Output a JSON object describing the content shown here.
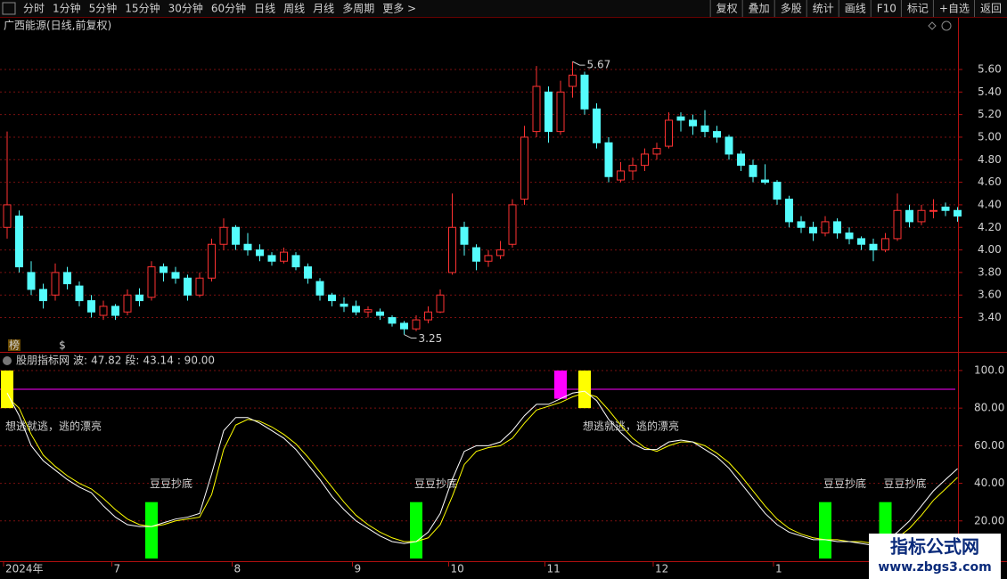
{
  "toolbar": {
    "left": [
      "分时",
      "1分钟",
      "5分钟",
      "15分钟",
      "30分钟",
      "60分钟",
      "日线",
      "周线",
      "月线",
      "多周期",
      "更多 >"
    ],
    "right": [
      "复权",
      "叠加",
      "多股",
      "统计",
      "画线",
      "F10",
      "标记",
      "+自选",
      "返回"
    ]
  },
  "markers": [
    "榜",
    "$"
  ],
  "watermark": {
    "title": "指标公式网",
    "url": "www.zbgs3.com"
  },
  "chart_data": [
    {
      "type": "candlestick",
      "title": "广西能源(日线,前复权)",
      "categories": [
        "2024年",
        null,
        null,
        null,
        null,
        null,
        null,
        null,
        null,
        "7",
        null,
        null,
        null,
        null,
        null,
        null,
        null,
        null,
        null,
        "8",
        null,
        null,
        null,
        null,
        null,
        null,
        null,
        null,
        null,
        "9",
        null,
        null,
        null,
        null,
        null,
        null,
        null,
        "10",
        null,
        null,
        null,
        null,
        null,
        null,
        null,
        "11",
        null,
        null,
        null,
        null,
        null,
        null,
        null,
        null,
        "12",
        null,
        null,
        null,
        null,
        null,
        null,
        null,
        null,
        null,
        "1",
        null,
        null,
        null,
        null,
        null,
        null,
        null,
        null,
        null,
        null,
        null,
        null,
        null,
        null,
        null
      ],
      "candles": [
        [
          4.2,
          5.05,
          4.1,
          4.4
        ],
        [
          4.3,
          4.35,
          3.8,
          3.85
        ],
        [
          3.8,
          3.9,
          3.6,
          3.65
        ],
        [
          3.65,
          3.7,
          3.48,
          3.55
        ],
        [
          3.6,
          3.88,
          3.55,
          3.8
        ],
        [
          3.8,
          3.85,
          3.65,
          3.7
        ],
        [
          3.68,
          3.72,
          3.5,
          3.55
        ],
        [
          3.55,
          3.6,
          3.4,
          3.45
        ],
        [
          3.42,
          3.55,
          3.38,
          3.5
        ],
        [
          3.5,
          3.52,
          3.38,
          3.42
        ],
        [
          3.45,
          3.65,
          3.42,
          3.6
        ],
        [
          3.6,
          3.66,
          3.5,
          3.55
        ],
        [
          3.58,
          3.9,
          3.55,
          3.85
        ],
        [
          3.85,
          3.88,
          3.72,
          3.8
        ],
        [
          3.8,
          3.85,
          3.7,
          3.75
        ],
        [
          3.75,
          3.78,
          3.55,
          3.6
        ],
        [
          3.6,
          3.8,
          3.58,
          3.75
        ],
        [
          3.75,
          4.1,
          3.72,
          4.05
        ],
        [
          4.05,
          4.28,
          4.0,
          4.2
        ],
        [
          4.2,
          4.22,
          4.0,
          4.05
        ],
        [
          4.05,
          4.15,
          3.95,
          4.0
        ],
        [
          4.0,
          4.05,
          3.9,
          3.95
        ],
        [
          3.95,
          3.98,
          3.86,
          3.9
        ],
        [
          3.9,
          4.02,
          3.88,
          3.98
        ],
        [
          3.95,
          3.98,
          3.82,
          3.85
        ],
        [
          3.85,
          3.88,
          3.7,
          3.75
        ],
        [
          3.72,
          3.75,
          3.55,
          3.6
        ],
        [
          3.6,
          3.62,
          3.5,
          3.55
        ],
        [
          3.52,
          3.58,
          3.45,
          3.5
        ],
        [
          3.5,
          3.55,
          3.42,
          3.45
        ],
        [
          3.45,
          3.5,
          3.4,
          3.47
        ],
        [
          3.45,
          3.48,
          3.38,
          3.42
        ],
        [
          3.4,
          3.42,
          3.32,
          3.35
        ],
        [
          3.35,
          3.37,
          3.25,
          3.3
        ],
        [
          3.3,
          3.42,
          3.28,
          3.38
        ],
        [
          3.38,
          3.5,
          3.35,
          3.45
        ],
        [
          3.45,
          3.65,
          3.44,
          3.6
        ],
        [
          3.8,
          4.5,
          3.78,
          4.2
        ],
        [
          4.2,
          4.25,
          3.95,
          4.05
        ],
        [
          4.02,
          4.05,
          3.82,
          3.9
        ],
        [
          3.9,
          4.0,
          3.85,
          3.95
        ],
        [
          3.95,
          4.08,
          3.92,
          4.0
        ],
        [
          4.05,
          4.45,
          4.02,
          4.4
        ],
        [
          4.45,
          5.1,
          4.4,
          5.0
        ],
        [
          5.05,
          5.63,
          5.0,
          5.45
        ],
        [
          5.4,
          5.45,
          4.95,
          5.05
        ],
        [
          5.05,
          5.5,
          5.02,
          5.4
        ],
        [
          5.45,
          5.67,
          5.35,
          5.55
        ],
        [
          5.55,
          5.58,
          5.2,
          5.25
        ],
        [
          5.25,
          5.3,
          4.9,
          4.95
        ],
        [
          4.95,
          5.0,
          4.6,
          4.65
        ],
        [
          4.62,
          4.78,
          4.6,
          4.7
        ],
        [
          4.7,
          4.82,
          4.62,
          4.75
        ],
        [
          4.75,
          4.9,
          4.7,
          4.85
        ],
        [
          4.85,
          4.95,
          4.8,
          4.9
        ],
        [
          4.92,
          5.22,
          4.9,
          5.15
        ],
        [
          5.18,
          5.22,
          5.05,
          5.15
        ],
        [
          5.15,
          5.2,
          5.02,
          5.1
        ],
        [
          5.1,
          5.24,
          5.0,
          5.05
        ],
        [
          5.05,
          5.1,
          4.95,
          5.0
        ],
        [
          5.0,
          5.02,
          4.8,
          4.85
        ],
        [
          4.85,
          4.88,
          4.7,
          4.75
        ],
        [
          4.75,
          4.8,
          4.6,
          4.65
        ],
        [
          4.62,
          4.76,
          4.58,
          4.6
        ],
        [
          4.6,
          4.62,
          4.4,
          4.45
        ],
        [
          4.45,
          4.48,
          4.2,
          4.25
        ],
        [
          4.25,
          4.3,
          4.15,
          4.2
        ],
        [
          4.2,
          4.25,
          4.08,
          4.15
        ],
        [
          4.15,
          4.3,
          4.12,
          4.25
        ],
        [
          4.25,
          4.28,
          4.1,
          4.15
        ],
        [
          4.15,
          4.2,
          4.05,
          4.1
        ],
        [
          4.1,
          4.12,
          4.0,
          4.05
        ],
        [
          4.05,
          4.1,
          3.9,
          4.0
        ],
        [
          4.0,
          4.15,
          3.98,
          4.1
        ],
        [
          4.1,
          4.5,
          4.08,
          4.35
        ],
        [
          4.35,
          4.4,
          4.2,
          4.25
        ],
        [
          4.25,
          4.4,
          4.22,
          4.35
        ],
        [
          4.35,
          4.45,
          4.28,
          4.35
        ],
        [
          4.38,
          4.42,
          4.3,
          4.35
        ],
        [
          4.35,
          4.38,
          4.25,
          4.3
        ]
      ],
      "up_color": "#ff3232",
      "down_color": "#54fcfc",
      "ylim": [
        3.12,
        5.9
      ],
      "yticks": [
        {
          "value": 3.4,
          "label": "3.40"
        },
        {
          "value": 3.6,
          "label": "3.60"
        },
        {
          "value": 3.8,
          "label": "3.80"
        },
        {
          "value": 4.0,
          "label": "4.00"
        },
        {
          "value": 4.2,
          "label": "4.20"
        },
        {
          "value": 4.4,
          "label": "4.40"
        },
        {
          "value": 4.6,
          "label": "4.60"
        },
        {
          "value": 4.8,
          "label": "4.80"
        },
        {
          "value": 5.0,
          "label": "5.00"
        },
        {
          "value": 5.2,
          "label": "5.20"
        },
        {
          "value": 5.4,
          "label": "5.40"
        },
        {
          "value": 5.6,
          "label": "5.60"
        }
      ],
      "grid": true
    },
    {
      "type": "line",
      "title": "股朋指标网",
      "series": [
        {
          "name": "波:",
          "color": "#ffffff",
          "values": [
            88,
            76,
            60,
            52,
            47,
            42,
            38,
            35,
            28,
            22,
            18,
            17,
            17,
            19,
            21,
            22,
            24,
            45,
            68,
            75,
            75,
            72,
            68,
            64,
            58,
            50,
            42,
            33,
            26,
            20,
            16,
            12,
            9,
            8,
            9,
            14,
            24,
            42,
            57,
            60,
            60,
            62,
            68,
            76,
            82,
            82,
            85,
            88,
            89,
            84,
            74,
            67,
            61,
            58,
            58,
            62,
            63,
            62,
            58,
            54,
            48,
            40,
            32,
            24,
            18,
            14,
            12,
            10,
            10,
            9,
            9,
            8,
            7,
            9,
            14,
            20,
            28,
            36,
            42,
            47.82
          ]
        },
        {
          "name": "段:",
          "color": "#ffff00",
          "values": [
            86,
            80,
            66,
            55,
            49,
            44,
            40,
            37,
            32,
            26,
            21,
            18,
            17,
            18,
            20,
            21,
            22,
            34,
            58,
            71,
            74,
            73,
            70,
            66,
            61,
            54,
            46,
            38,
            30,
            23,
            18,
            14,
            11,
            9,
            9,
            11,
            18,
            33,
            50,
            57,
            59,
            60,
            64,
            72,
            79,
            81,
            83,
            86,
            88,
            86,
            79,
            71,
            64,
            59,
            57,
            60,
            62,
            62,
            60,
            56,
            51,
            44,
            36,
            28,
            21,
            16,
            13,
            11,
            10,
            10,
            9,
            9,
            8,
            8,
            11,
            16,
            23,
            31,
            37,
            43.14
          ]
        }
      ],
      "hline": {
        "value": 90,
        "label": ": 90.00",
        "color": "#ff00ff"
      },
      "signals": [
        {
          "x": 0,
          "low": 80,
          "high": 100,
          "color": "#ffff00",
          "label": "想逃就逃，逃的漂亮"
        },
        {
          "x": 46,
          "low": 85,
          "high": 100,
          "color": "#ff00ff"
        },
        {
          "x": 48,
          "low": 80,
          "high": 100,
          "color": "#ffff00",
          "label": "想逃就逃，逃的漂亮"
        },
        {
          "x": 12,
          "low": 0,
          "high": 30,
          "color": "#00ff00",
          "label": "豆豆抄底"
        },
        {
          "x": 34,
          "low": 0,
          "high": 30,
          "color": "#00ff00",
          "label": "豆豆抄底"
        },
        {
          "x": 68,
          "low": 0,
          "high": 30,
          "color": "#00ff00",
          "label": "豆豆抄底"
        },
        {
          "x": 73,
          "low": 0,
          "high": 30,
          "color": "#00ff00",
          "label": "豆豆抄底"
        }
      ],
      "ylim": [
        0,
        108.5
      ],
      "yticks": [
        {
          "value": 20,
          "label": "20.00"
        },
        {
          "value": 40,
          "label": "40.00"
        },
        {
          "value": 60,
          "label": "60.00"
        },
        {
          "value": 80,
          "label": "80.00"
        },
        {
          "value": 100,
          "label": "100.0"
        }
      ]
    }
  ]
}
